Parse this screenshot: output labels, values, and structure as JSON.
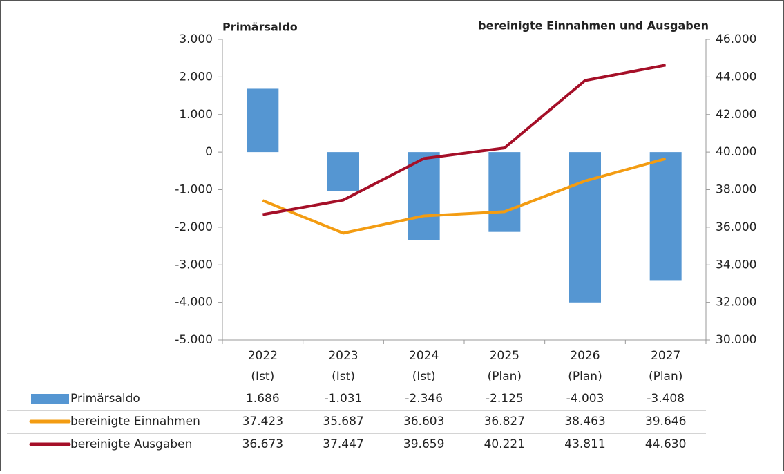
{
  "chart_data": {
    "type": "bar-line",
    "y_title": "Primärsaldo",
    "y2_title": "bereinigte Einnahmen und Ausgaben",
    "categories": [
      [
        "2022",
        "(Ist)"
      ],
      [
        "2023",
        "(Ist)"
      ],
      [
        "2024",
        "(Ist)"
      ],
      [
        "2025",
        "(Plan)"
      ],
      [
        "2026",
        "(Plan)"
      ],
      [
        "2027",
        "(Plan)"
      ]
    ],
    "series": [
      {
        "name": "Primärsaldo",
        "type": "bar",
        "color": "#5596d2",
        "axis": "y",
        "values": [
          1686,
          -1031,
          -2346,
          -2125,
          -4003,
          -3408
        ],
        "value_labels": [
          "1.686",
          "-1.031",
          "-2.346",
          "-2.125",
          "-4.003",
          "-3.408"
        ]
      },
      {
        "name": "bereinigte Einnahmen",
        "type": "line",
        "color": "#f39c12",
        "axis": "y2",
        "values": [
          37423,
          35687,
          36603,
          36827,
          38463,
          39646
        ],
        "value_labels": [
          "37.423",
          "35.687",
          "36.603",
          "36.827",
          "38.463",
          "39.646"
        ]
      },
      {
        "name": "bereinigte Ausgaben",
        "type": "line",
        "color": "#a50f28",
        "axis": "y2",
        "values": [
          36673,
          37447,
          39659,
          40221,
          43811,
          44630
        ],
        "value_labels": [
          "36.673",
          "37.447",
          "39.659",
          "40.221",
          "43.811",
          "44.630"
        ]
      }
    ],
    "ylim": [
      -5000,
      3000
    ],
    "yticks": [
      {
        "value": -5000,
        "label": "-5.000"
      },
      {
        "value": -4000,
        "label": "-4.000"
      },
      {
        "value": -3000,
        "label": "-3.000"
      },
      {
        "value": -2000,
        "label": "-2.000"
      },
      {
        "value": -1000,
        "label": "-1.000"
      },
      0,
      {
        "value": 1000,
        "label": "1.000"
      },
      {
        "value": 2000,
        "label": "2.000"
      },
      {
        "value": 3000,
        "label": "3.000"
      }
    ],
    "y2lim": [
      30000,
      46000
    ],
    "y2ticks": [
      {
        "value": 30000,
        "label": "30.000"
      },
      {
        "value": 32000,
        "label": "32.000"
      },
      {
        "value": 34000,
        "label": "34.000"
      },
      {
        "value": 36000,
        "label": "36.000"
      },
      {
        "value": 38000,
        "label": "38.000"
      },
      {
        "value": 40000,
        "label": "40.000"
      },
      {
        "value": 42000,
        "label": "42.000"
      },
      {
        "value": 44000,
        "label": "44.000"
      },
      {
        "value": 46000,
        "label": "46.000"
      }
    ]
  }
}
